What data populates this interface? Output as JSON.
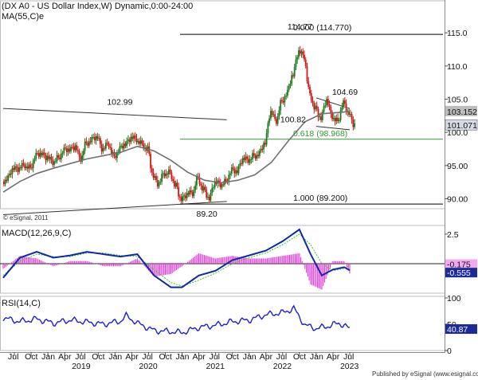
{
  "chart_data": {
    "type": "candlestick",
    "instrument": "DX A0 - US Dollar Index",
    "title": "(DX A0 - US Dollar Index,W) Dynamic,0:00-24:00",
    "ma_label": "MA(55,C)e",
    "watermark": "© eSignal, 2011",
    "footer": "Published by eSignal (www.esignal.com)",
    "time_axis": {
      "start": "2018-05",
      "end": "2023-08",
      "tick_labels": [
        "Jul",
        "Oct",
        "Jan",
        "Apr",
        "Jul",
        "Oct",
        "Jan",
        "Apr",
        "Jul",
        "Oct",
        "Jan",
        "Apr",
        "Jul",
        "Oct",
        "Jan",
        "Apr",
        "Jul",
        "Oct",
        "Jan",
        "Apr",
        "Jul"
      ],
      "years": [
        "2019",
        "2020",
        "2021",
        "2022",
        "2023"
      ]
    },
    "price_panel": {
      "ylim": [
        88.5,
        118.5
      ],
      "y_ticks": [
        90,
        95,
        100,
        105,
        110,
        115
      ],
      "y_tick_labels": [
        "90.00",
        "95.00",
        "100.0",
        "105.0",
        "110.0",
        "115.0"
      ],
      "last_price": "103.152",
      "last_close": "101.071",
      "fib_levels": [
        {
          "label": "0.000 (114.770)",
          "value": 114.77,
          "color": "#000000"
        },
        {
          "label": "0.618 (98.968)",
          "value": 98.968,
          "color": "#2e9e2e"
        },
        {
          "label": "1.000 (89.200)",
          "value": 89.2,
          "color": "#000000"
        }
      ],
      "annotations": [
        {
          "text": "114.77",
          "date": "2022-09",
          "value": 114.77
        },
        {
          "text": "102.99",
          "date": "2020-03",
          "value": 102.99
        },
        {
          "text": "104.69",
          "date": "2023-05",
          "value": 104.69
        },
        {
          "text": "100.82",
          "date": "2023-02",
          "value": 100.82
        },
        {
          "text": "89.20",
          "date": "2021-01",
          "value": 89.2
        }
      ],
      "trendlines": [
        {
          "from": [
            "2018-05",
            103.6
          ],
          "to": [
            "2021-09",
            101.9
          ]
        },
        {
          "from": [
            "2018-05",
            87.6
          ],
          "to": [
            "2021-09",
            89.6
          ]
        },
        {
          "from": [
            "2023-01",
            105.2
          ],
          "to": [
            "2023-07",
            103.6
          ]
        },
        {
          "from": [
            "2023-01",
            100.9
          ],
          "to": [
            "2023-07",
            100.4
          ]
        }
      ],
      "close_series": [
        [
          "2018-05",
          93.0
        ],
        [
          "2018-06",
          94.6
        ],
        [
          "2018-07",
          94.5
        ],
        [
          "2018-08",
          95.1
        ],
        [
          "2018-09",
          94.7
        ],
        [
          "2018-10",
          96.4
        ],
        [
          "2018-11",
          96.8
        ],
        [
          "2018-12",
          96.2
        ],
        [
          "2019-01",
          95.6
        ],
        [
          "2019-02",
          96.2
        ],
        [
          "2019-03",
          97.2
        ],
        [
          "2019-04",
          97.4
        ],
        [
          "2019-05",
          97.8
        ],
        [
          "2019-06",
          96.1
        ],
        [
          "2019-07",
          98.4
        ],
        [
          "2019-08",
          98.8
        ],
        [
          "2019-09",
          99.3
        ],
        [
          "2019-10",
          97.4
        ],
        [
          "2019-11",
          98.3
        ],
        [
          "2019-12",
          96.4
        ],
        [
          "2020-01",
          97.4
        ],
        [
          "2020-02",
          98.2
        ],
        [
          "2020-03",
          99.1
        ],
        [
          "2020-04",
          99.0
        ],
        [
          "2020-05",
          98.3
        ],
        [
          "2020-06",
          97.4
        ],
        [
          "2020-07",
          93.4
        ],
        [
          "2020-08",
          92.2
        ],
        [
          "2020-09",
          93.9
        ],
        [
          "2020-10",
          94.0
        ],
        [
          "2020-11",
          91.9
        ],
        [
          "2020-12",
          89.9
        ],
        [
          "2021-01",
          90.6
        ],
        [
          "2021-02",
          90.9
        ],
        [
          "2021-03",
          93.2
        ],
        [
          "2021-04",
          91.3
        ],
        [
          "2021-05",
          90.0
        ],
        [
          "2021-06",
          92.4
        ],
        [
          "2021-07",
          92.2
        ],
        [
          "2021-08",
          92.6
        ],
        [
          "2021-09",
          94.2
        ],
        [
          "2021-10",
          94.1
        ],
        [
          "2021-11",
          95.9
        ],
        [
          "2021-12",
          95.9
        ],
        [
          "2022-01",
          96.5
        ],
        [
          "2022-02",
          96.7
        ],
        [
          "2022-03",
          98.4
        ],
        [
          "2022-04",
          103.0
        ],
        [
          "2022-05",
          101.8
        ],
        [
          "2022-06",
          104.7
        ],
        [
          "2022-07",
          105.9
        ],
        [
          "2022-08",
          108.7
        ],
        [
          "2022-09",
          112.1
        ],
        [
          "2022-10",
          111.5
        ],
        [
          "2022-11",
          105.9
        ],
        [
          "2022-12",
          103.5
        ],
        [
          "2023-01",
          102.1
        ],
        [
          "2023-02",
          104.8
        ],
        [
          "2023-03",
          102.5
        ],
        [
          "2023-04",
          101.7
        ],
        [
          "2023-05",
          104.3
        ],
        [
          "2023-06",
          102.9
        ],
        [
          "2023-07",
          101.1
        ]
      ],
      "ma55_series": [
        [
          "2018-05",
          91.0
        ],
        [
          "2018-08",
          92.6
        ],
        [
          "2018-11",
          93.8
        ],
        [
          "2019-02",
          94.6
        ],
        [
          "2019-05",
          95.3
        ],
        [
          "2019-08",
          96.0
        ],
        [
          "2019-11",
          96.5
        ],
        [
          "2020-02",
          97.0
        ],
        [
          "2020-05",
          97.9
        ],
        [
          "2020-08",
          97.2
        ],
        [
          "2020-11",
          95.8
        ],
        [
          "2021-02",
          94.0
        ],
        [
          "2021-05",
          92.8
        ],
        [
          "2021-08",
          92.4
        ],
        [
          "2021-11",
          92.8
        ],
        [
          "2022-02",
          93.6
        ],
        [
          "2022-05",
          95.5
        ],
        [
          "2022-08",
          98.7
        ],
        [
          "2022-11",
          101.6
        ],
        [
          "2023-02",
          102.8
        ],
        [
          "2023-05",
          103.0
        ],
        [
          "2023-07",
          103.15
        ]
      ]
    },
    "macd_panel": {
      "label": "MACD(12,26,9,C)",
      "ylim": [
        -2.5,
        3.1
      ],
      "y_ticks": [
        2.5
      ],
      "y_tick_labels": [
        "2.5"
      ],
      "last_signal": "-0.175",
      "last_macd": "-0.555",
      "macd_series": [
        [
          "2018-05",
          -1.2
        ],
        [
          "2018-08",
          0.5
        ],
        [
          "2018-11",
          1.0
        ],
        [
          "2019-02",
          0.5
        ],
        [
          "2019-05",
          0.7
        ],
        [
          "2019-08",
          1.0
        ],
        [
          "2019-11",
          0.8
        ],
        [
          "2020-02",
          0.6
        ],
        [
          "2020-05",
          0.8
        ],
        [
          "2020-08",
          -1.0
        ],
        [
          "2020-11",
          -2.0
        ],
        [
          "2021-01",
          -2.0
        ],
        [
          "2021-04",
          -1.0
        ],
        [
          "2021-07",
          -0.6
        ],
        [
          "2021-10",
          0.3
        ],
        [
          "2022-01",
          0.7
        ],
        [
          "2022-04",
          1.1
        ],
        [
          "2022-07",
          1.9
        ],
        [
          "2022-10",
          2.9
        ],
        [
          "2022-12",
          0.8
        ],
        [
          "2023-02",
          -1.0
        ],
        [
          "2023-04",
          -0.5
        ],
        [
          "2023-06",
          -0.3
        ],
        [
          "2023-07",
          -0.555
        ]
      ],
      "signal_series": [
        [
          "2018-05",
          -1.0
        ],
        [
          "2018-08",
          0.2
        ],
        [
          "2018-11",
          0.8
        ],
        [
          "2019-02",
          0.6
        ],
        [
          "2019-05",
          0.6
        ],
        [
          "2019-08",
          0.9
        ],
        [
          "2019-11",
          0.9
        ],
        [
          "2020-02",
          0.7
        ],
        [
          "2020-05",
          0.6
        ],
        [
          "2020-08",
          -0.5
        ],
        [
          "2020-11",
          -1.6
        ],
        [
          "2021-01",
          -1.9
        ],
        [
          "2021-04",
          -1.4
        ],
        [
          "2021-07",
          -0.8
        ],
        [
          "2021-10",
          0.0
        ],
        [
          "2022-01",
          0.5
        ],
        [
          "2022-04",
          0.9
        ],
        [
          "2022-07",
          1.6
        ],
        [
          "2022-10",
          2.5
        ],
        [
          "2022-12",
          1.6
        ],
        [
          "2023-02",
          0.0
        ],
        [
          "2023-04",
          -0.6
        ],
        [
          "2023-06",
          -0.4
        ],
        [
          "2023-07",
          -0.175
        ]
      ]
    },
    "rsi_panel": {
      "label": "RSI(14,C)",
      "ylim": [
        0,
        100
      ],
      "y_ticks": [
        0,
        50,
        100
      ],
      "y_tick_labels": [
        "0",
        "50",
        "100"
      ],
      "last_value": "40.87",
      "rsi_series": [
        [
          "2018-05",
          62
        ],
        [
          "2018-08",
          55
        ],
        [
          "2018-11",
          60
        ],
        [
          "2019-02",
          52
        ],
        [
          "2019-05",
          58
        ],
        [
          "2019-08",
          54
        ],
        [
          "2019-11",
          50
        ],
        [
          "2020-02",
          56
        ],
        [
          "2020-03",
          66
        ],
        [
          "2020-05",
          52
        ],
        [
          "2020-08",
          38
        ],
        [
          "2020-11",
          36
        ],
        [
          "2021-01",
          34
        ],
        [
          "2021-04",
          44
        ],
        [
          "2021-07",
          48
        ],
        [
          "2021-10",
          55
        ],
        [
          "2022-01",
          58
        ],
        [
          "2022-04",
          68
        ],
        [
          "2022-07",
          72
        ],
        [
          "2022-09",
          80
        ],
        [
          "2022-11",
          48
        ],
        [
          "2023-01",
          42
        ],
        [
          "2023-03",
          46
        ],
        [
          "2023-05",
          52
        ],
        [
          "2023-06",
          48
        ],
        [
          "2023-07",
          40.87
        ]
      ]
    }
  }
}
